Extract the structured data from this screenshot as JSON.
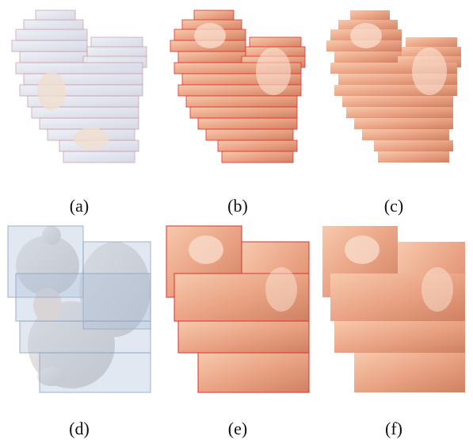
{
  "subfigures": [
    {
      "label": "(a)"
    },
    {
      "label": "(b)"
    },
    {
      "label": "(c)"
    },
    {
      "label": "(d)"
    },
    {
      "label": "(e)"
    },
    {
      "label": "(f)"
    }
  ]
}
